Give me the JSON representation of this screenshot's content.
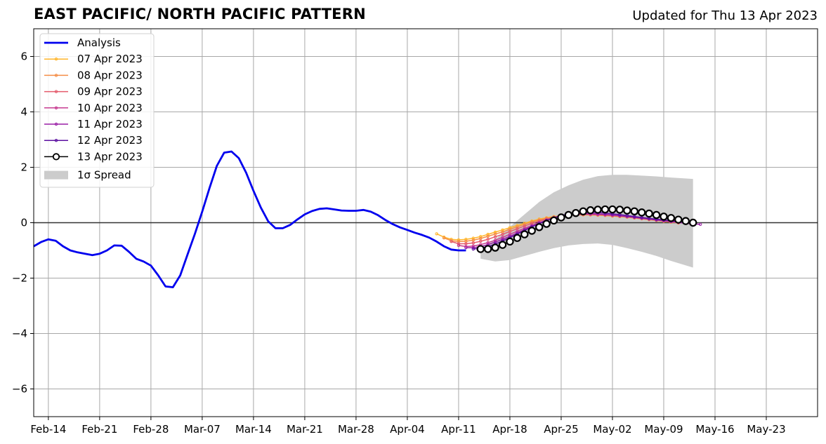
{
  "title": "EAST PACIFIC/ NORTH PACIFIC PATTERN",
  "subtitle": "Updated for Thu 13 Apr 2023",
  "chart_data": {
    "type": "line",
    "title": "EAST PACIFIC/ NORTH PACIFIC PATTERN",
    "subtitle": "Updated for Thu 13 Apr 2023",
    "xlabel": "",
    "ylabel": "",
    "xlim": [
      "2023-02-12",
      "2023-05-30"
    ],
    "ylim": [
      -7,
      7
    ],
    "grid": true,
    "legend_position": "top-left",
    "x_ticks": [
      "2023-02-14",
      "2023-02-21",
      "2023-02-28",
      "2023-03-07",
      "2023-03-14",
      "2023-03-21",
      "2023-03-28",
      "2023-04-04",
      "2023-04-11",
      "2023-04-18",
      "2023-04-25",
      "2023-05-02",
      "2023-05-09",
      "2023-05-16",
      "2023-05-23"
    ],
    "x_tick_labels": [
      "Feb-14",
      "Feb-21",
      "Feb-28",
      "Mar-07",
      "Mar-14",
      "Mar-21",
      "Mar-28",
      "Apr-04",
      "Apr-11",
      "Apr-18",
      "Apr-25",
      "May-02",
      "May-09",
      "May-16",
      "May-23"
    ],
    "y_ticks": [
      -6,
      -4,
      -2,
      0,
      2,
      4,
      6
    ],
    "y_tick_labels": [
      "−6",
      "−4",
      "−2",
      "0",
      "2",
      "4",
      "6"
    ],
    "series": [
      {
        "name": "Analysis",
        "color": "#0000ee",
        "x": [
          "2023-02-12",
          "2023-02-13",
          "2023-02-14",
          "2023-02-15",
          "2023-02-16",
          "2023-02-17",
          "2023-02-18",
          "2023-02-19",
          "2023-02-20",
          "2023-02-21",
          "2023-02-22",
          "2023-02-23",
          "2023-02-24",
          "2023-02-25",
          "2023-02-26",
          "2023-02-27",
          "2023-02-28",
          "2023-03-01",
          "2023-03-02",
          "2023-03-03",
          "2023-03-04",
          "2023-03-05",
          "2023-03-06",
          "2023-03-07",
          "2023-03-08",
          "2023-03-09",
          "2023-03-10",
          "2023-03-11",
          "2023-03-12",
          "2023-03-13",
          "2023-03-14",
          "2023-03-15",
          "2023-03-16",
          "2023-03-17",
          "2023-03-18",
          "2023-03-19",
          "2023-03-20",
          "2023-03-21",
          "2023-03-22",
          "2023-03-23",
          "2023-03-24",
          "2023-03-25",
          "2023-03-26",
          "2023-03-27",
          "2023-03-28",
          "2023-03-29",
          "2023-03-30",
          "2023-03-31",
          "2023-04-01",
          "2023-04-02",
          "2023-04-03",
          "2023-04-04",
          "2023-04-05",
          "2023-04-06",
          "2023-04-07",
          "2023-04-08",
          "2023-04-09",
          "2023-04-10",
          "2023-04-11",
          "2023-04-12"
        ],
        "y": [
          -0.85,
          -0.7,
          -0.6,
          -0.65,
          -0.85,
          -1.0,
          -1.07,
          -1.12,
          -1.17,
          -1.12,
          -1.0,
          -0.82,
          -0.83,
          -1.05,
          -1.3,
          -1.4,
          -1.55,
          -1.9,
          -2.3,
          -2.33,
          -1.9,
          -1.15,
          -0.4,
          0.4,
          1.25,
          2.05,
          2.53,
          2.57,
          2.33,
          1.8,
          1.15,
          0.55,
          0.05,
          -0.2,
          -0.2,
          -0.08,
          0.12,
          0.3,
          0.42,
          0.5,
          0.52,
          0.48,
          0.44,
          0.43,
          0.43,
          0.46,
          0.4,
          0.27,
          0.1,
          -0.05,
          -0.17,
          -0.26,
          -0.36,
          -0.44,
          -0.54,
          -0.68,
          -0.85,
          -0.97,
          -1.0,
          -1.0
        ]
      },
      {
        "name": "07 Apr 2023",
        "color": "#ffb52a",
        "x": [
          "2023-04-08",
          "2023-04-09",
          "2023-04-10",
          "2023-04-11",
          "2023-04-12",
          "2023-04-13",
          "2023-04-14",
          "2023-04-15",
          "2023-04-16",
          "2023-04-17",
          "2023-04-18",
          "2023-04-19",
          "2023-04-20",
          "2023-04-21",
          "2023-04-22",
          "2023-04-23",
          "2023-04-24",
          "2023-04-25",
          "2023-04-26",
          "2023-04-27",
          "2023-04-28",
          "2023-04-29",
          "2023-04-30",
          "2023-05-01",
          "2023-05-02",
          "2023-05-03",
          "2023-05-04",
          "2023-05-05",
          "2023-05-06",
          "2023-05-07",
          "2023-05-08",
          "2023-05-09",
          "2023-05-10"
        ],
        "y": [
          -0.4,
          -0.52,
          -0.6,
          -0.62,
          -0.6,
          -0.56,
          -0.5,
          -0.42,
          -0.34,
          -0.26,
          -0.18,
          -0.1,
          -0.02,
          0.06,
          0.13,
          0.18,
          0.22,
          0.25,
          0.27,
          0.28,
          0.28,
          0.28,
          0.27,
          0.26,
          0.24,
          0.22,
          0.2,
          0.17,
          0.14,
          0.11,
          0.08,
          0.05,
          0.02
        ]
      },
      {
        "name": "08 Apr 2023",
        "color": "#f58d46",
        "x": [
          "2023-04-09",
          "2023-04-10",
          "2023-04-11",
          "2023-04-12",
          "2023-04-13",
          "2023-04-14",
          "2023-04-15",
          "2023-04-16",
          "2023-04-17",
          "2023-04-18",
          "2023-04-19",
          "2023-04-20",
          "2023-04-21",
          "2023-04-22",
          "2023-04-23",
          "2023-04-24",
          "2023-04-25",
          "2023-04-26",
          "2023-04-27",
          "2023-04-28",
          "2023-04-29",
          "2023-04-30",
          "2023-05-01",
          "2023-05-02",
          "2023-05-03",
          "2023-05-04",
          "2023-05-05",
          "2023-05-06",
          "2023-05-07",
          "2023-05-08",
          "2023-05-09",
          "2023-05-10",
          "2023-05-11"
        ],
        "y": [
          -0.55,
          -0.65,
          -0.68,
          -0.67,
          -0.63,
          -0.57,
          -0.49,
          -0.41,
          -0.33,
          -0.24,
          -0.15,
          -0.06,
          0.03,
          0.1,
          0.16,
          0.21,
          0.25,
          0.27,
          0.28,
          0.29,
          0.28,
          0.27,
          0.26,
          0.24,
          0.22,
          0.2,
          0.17,
          0.14,
          0.11,
          0.08,
          0.05,
          0.02,
          -0.01
        ]
      },
      {
        "name": "09 Apr 2023",
        "color": "#e45a6b",
        "x": [
          "2023-04-10",
          "2023-04-11",
          "2023-04-12",
          "2023-04-13",
          "2023-04-14",
          "2023-04-15",
          "2023-04-16",
          "2023-04-17",
          "2023-04-18",
          "2023-04-19",
          "2023-04-20",
          "2023-04-21",
          "2023-04-22",
          "2023-04-23",
          "2023-04-24",
          "2023-04-25",
          "2023-04-26",
          "2023-04-27",
          "2023-04-28",
          "2023-04-29",
          "2023-04-30",
          "2023-05-01",
          "2023-05-02",
          "2023-05-03",
          "2023-05-04",
          "2023-05-05",
          "2023-05-06",
          "2023-05-07",
          "2023-05-08",
          "2023-05-09",
          "2023-05-10",
          "2023-05-11",
          "2023-05-12"
        ],
        "y": [
          -0.68,
          -0.76,
          -0.76,
          -0.73,
          -0.67,
          -0.6,
          -0.51,
          -0.42,
          -0.32,
          -0.22,
          -0.12,
          -0.03,
          0.06,
          0.13,
          0.19,
          0.24,
          0.27,
          0.29,
          0.3,
          0.3,
          0.29,
          0.28,
          0.26,
          0.24,
          0.22,
          0.19,
          0.16,
          0.13,
          0.1,
          0.07,
          0.04,
          0.01,
          -0.02
        ]
      },
      {
        "name": "10 Apr 2023",
        "color": "#c73c91",
        "x": [
          "2023-04-11",
          "2023-04-12",
          "2023-04-13",
          "2023-04-14",
          "2023-04-15",
          "2023-04-16",
          "2023-04-17",
          "2023-04-18",
          "2023-04-19",
          "2023-04-20",
          "2023-04-21",
          "2023-04-22",
          "2023-04-23",
          "2023-04-24",
          "2023-04-25",
          "2023-04-26",
          "2023-04-27",
          "2023-04-28",
          "2023-04-29",
          "2023-04-30",
          "2023-05-01",
          "2023-05-02",
          "2023-05-03",
          "2023-05-04",
          "2023-05-05",
          "2023-05-06",
          "2023-05-07",
          "2023-05-08",
          "2023-05-09",
          "2023-05-10",
          "2023-05-11",
          "2023-05-12",
          "2023-05-13"
        ],
        "y": [
          -0.82,
          -0.86,
          -0.84,
          -0.79,
          -0.72,
          -0.63,
          -0.53,
          -0.42,
          -0.31,
          -0.2,
          -0.1,
          0.0,
          0.09,
          0.17,
          0.23,
          0.27,
          0.3,
          0.31,
          0.31,
          0.3,
          0.29,
          0.27,
          0.25,
          0.22,
          0.19,
          0.16,
          0.13,
          0.1,
          0.07,
          0.04,
          0.01,
          -0.02,
          -0.04
        ]
      },
      {
        "name": "11 Apr 2023",
        "color": "#9a1fa6",
        "x": [
          "2023-04-12",
          "2023-04-13",
          "2023-04-14",
          "2023-04-15",
          "2023-04-16",
          "2023-04-17",
          "2023-04-18",
          "2023-04-19",
          "2023-04-20",
          "2023-04-21",
          "2023-04-22",
          "2023-04-23",
          "2023-04-24",
          "2023-04-25",
          "2023-04-26",
          "2023-04-27",
          "2023-04-28",
          "2023-04-29",
          "2023-04-30",
          "2023-05-01",
          "2023-05-02",
          "2023-05-03",
          "2023-05-04",
          "2023-05-05",
          "2023-05-06",
          "2023-05-07",
          "2023-05-08",
          "2023-05-09",
          "2023-05-10",
          "2023-05-11",
          "2023-05-12",
          "2023-05-13",
          "2023-05-14"
        ],
        "y": [
          -0.9,
          -0.9,
          -0.86,
          -0.79,
          -0.7,
          -0.6,
          -0.49,
          -0.37,
          -0.25,
          -0.13,
          -0.02,
          0.08,
          0.17,
          0.24,
          0.29,
          0.32,
          0.33,
          0.33,
          0.32,
          0.3,
          0.28,
          0.25,
          0.22,
          0.19,
          0.16,
          0.13,
          0.1,
          0.07,
          0.04,
          0.01,
          -0.02,
          -0.04,
          -0.06
        ]
      },
      {
        "name": "12 Apr 2023",
        "color": "#5b0fa0",
        "x": [
          "2023-04-13",
          "2023-04-14",
          "2023-04-15",
          "2023-04-16",
          "2023-04-17",
          "2023-04-18",
          "2023-04-19",
          "2023-04-20",
          "2023-04-21",
          "2023-04-22",
          "2023-04-23",
          "2023-04-24",
          "2023-04-25",
          "2023-04-26",
          "2023-04-27",
          "2023-04-28",
          "2023-04-29",
          "2023-04-30",
          "2023-05-01",
          "2023-05-02",
          "2023-05-03",
          "2023-05-04",
          "2023-05-05",
          "2023-05-06",
          "2023-05-07",
          "2023-05-08",
          "2023-05-09",
          "2023-05-10",
          "2023-05-11",
          "2023-05-12",
          "2023-05-13"
        ],
        "y": [
          -0.95,
          -0.92,
          -0.86,
          -0.77,
          -0.66,
          -0.54,
          -0.41,
          -0.28,
          -0.15,
          -0.03,
          0.08,
          0.18,
          0.26,
          0.32,
          0.36,
          0.38,
          0.38,
          0.37,
          0.35,
          0.32,
          0.29,
          0.26,
          0.22,
          0.19,
          0.16,
          0.13,
          0.1,
          0.07,
          0.04,
          0.01,
          -0.02
        ]
      },
      {
        "name": "13 Apr 2023",
        "color": "#000000",
        "marker": "open-circle",
        "x": [
          "2023-04-14",
          "2023-04-15",
          "2023-04-16",
          "2023-04-17",
          "2023-04-18",
          "2023-04-19",
          "2023-04-20",
          "2023-04-21",
          "2023-04-22",
          "2023-04-23",
          "2023-04-24",
          "2023-04-25",
          "2023-04-26",
          "2023-04-27",
          "2023-04-28",
          "2023-04-29",
          "2023-04-30",
          "2023-05-01",
          "2023-05-02",
          "2023-05-03",
          "2023-05-04",
          "2023-05-05",
          "2023-05-06",
          "2023-05-07",
          "2023-05-08",
          "2023-05-09",
          "2023-05-10",
          "2023-05-11",
          "2023-05-12",
          "2023-05-13"
        ],
        "y": [
          -0.95,
          -0.95,
          -0.9,
          -0.8,
          -0.68,
          -0.55,
          -0.42,
          -0.29,
          -0.16,
          -0.04,
          0.08,
          0.19,
          0.28,
          0.35,
          0.41,
          0.45,
          0.47,
          0.48,
          0.48,
          0.47,
          0.44,
          0.41,
          0.37,
          0.33,
          0.28,
          0.22,
          0.17,
          0.11,
          0.06,
          0.0
        ]
      }
    ],
    "spread": {
      "name": "1σ Spread",
      "color": "#cccccc",
      "x": [
        "2023-04-14",
        "2023-04-16",
        "2023-04-18",
        "2023-04-20",
        "2023-04-22",
        "2023-04-24",
        "2023-04-26",
        "2023-04-28",
        "2023-04-30",
        "2023-05-02",
        "2023-05-04",
        "2023-05-06",
        "2023-05-08",
        "2023-05-10",
        "2023-05-13"
      ],
      "upper": [
        -0.95,
        -0.6,
        -0.15,
        0.3,
        0.75,
        1.1,
        1.35,
        1.55,
        1.68,
        1.73,
        1.73,
        1.7,
        1.67,
        1.63,
        1.58
      ],
      "lower": [
        -1.3,
        -1.4,
        -1.35,
        -1.2,
        -1.05,
        -0.92,
        -0.82,
        -0.77,
        -0.75,
        -0.8,
        -0.92,
        -1.05,
        -1.2,
        -1.38,
        -1.62
      ]
    }
  }
}
